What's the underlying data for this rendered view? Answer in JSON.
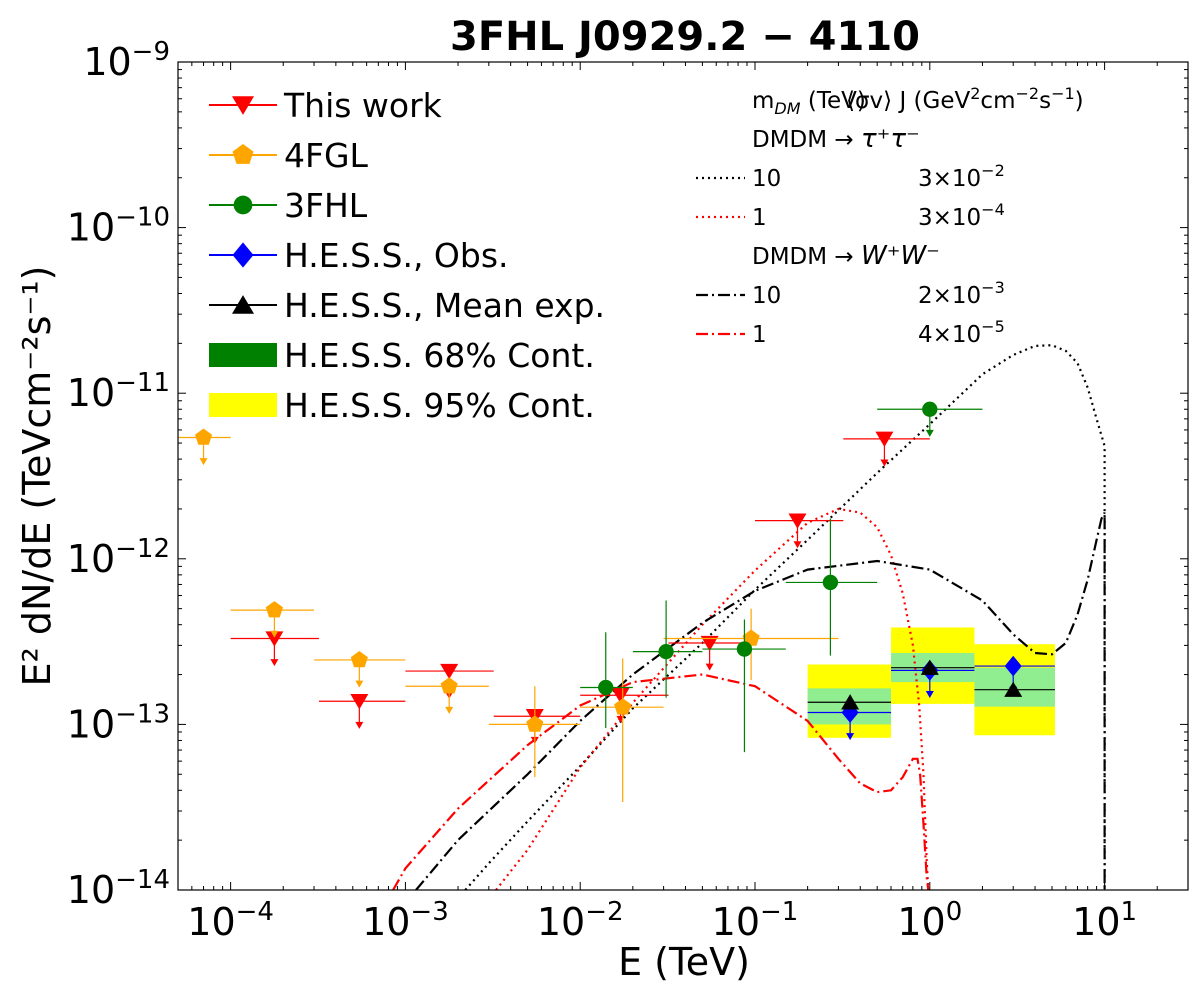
{
  "chart_data": {
    "type": "scatter",
    "title": "3FHL J0929.2 − 4110",
    "xlabel": "E (TeV)",
    "ylabel": "E² dN/dE (TeVcm⁻²s⁻¹)",
    "xscale": "log",
    "yscale": "log",
    "xlim": [
      5e-05,
      30
    ],
    "ylim": [
      1e-14,
      1e-09
    ],
    "x_ticks": [
      {
        "value": 0.0001,
        "base": "10",
        "exp": "−4"
      },
      {
        "value": 0.001,
        "base": "10",
        "exp": "−3"
      },
      {
        "value": 0.01,
        "base": "10",
        "exp": "−2"
      },
      {
        "value": 0.1,
        "base": "10",
        "exp": "−1"
      },
      {
        "value": 1,
        "base": "10",
        "exp": "0"
      },
      {
        "value": 10,
        "base": "10",
        "exp": "1"
      }
    ],
    "y_ticks": [
      {
        "value": 1e-14,
        "base": "10",
        "exp": "−14"
      },
      {
        "value": 1e-13,
        "base": "10",
        "exp": "−13"
      },
      {
        "value": 1e-12,
        "base": "10",
        "exp": "−12"
      },
      {
        "value": 1e-11,
        "base": "10",
        "exp": "−11"
      },
      {
        "value": 1e-10,
        "base": "10",
        "exp": "−10"
      },
      {
        "value": 1e-09,
        "base": "10",
        "exp": "−9"
      }
    ],
    "grid": false,
    "legend_position": "top-left",
    "legend": [
      {
        "label": "This work",
        "color": "#ff0000",
        "marker": "triangle-down"
      },
      {
        "label": "4FGL",
        "color": "#ffa500",
        "marker": "pentagon"
      },
      {
        "label": "3FHL",
        "color": "#008000",
        "marker": "circle"
      },
      {
        "label": "H.E.S.S., Obs.",
        "color": "#0000ff",
        "marker": "diamond"
      },
      {
        "label": "H.E.S.S., Mean exp.",
        "color": "#000000",
        "marker": "triangle-up"
      },
      {
        "label": "H.E.S.S. 68% Cont.",
        "color": "#008000",
        "marker": "patch"
      },
      {
        "label": "H.E.S.S. 95% Cont.",
        "color": "#ffff00",
        "marker": "patch"
      }
    ],
    "dm_legend": {
      "position": "top-right",
      "header_left": "m",
      "header_left_sub": "DM",
      "header_left_unit": " (TeV)",
      "header_right": "⟨σv⟩ J (GeV",
      "header_right_e1": "2",
      "header_right_mid": "cm",
      "header_right_e2": "−2",
      "header_right_mid2": "s",
      "header_right_e3": "−1",
      "header_right_end": ")",
      "groups": [
        {
          "label": "DMDM → ",
          "channel": "τ⁺τ⁻",
          "rows": [
            {
              "mass": "10",
              "coef": "3×10",
              "exp": "−2",
              "color": "#000000",
              "style": "dotted"
            },
            {
              "mass": "1",
              "coef": "3×10",
              "exp": "−4",
              "color": "#ff0000",
              "style": "dotted"
            }
          ]
        },
        {
          "label": "DMDM → ",
          "channel": "W⁺W⁻",
          "rows": [
            {
              "mass": "10",
              "coef": "2×10",
              "exp": "−3",
              "color": "#000000",
              "style": "dashdot"
            },
            {
              "mass": "1",
              "coef": "4×10",
              "exp": "−5",
              "color": "#ff0000",
              "style": "dashdot"
            }
          ]
        }
      ]
    },
    "series": [
      {
        "name": "This work",
        "color": "#ff0000",
        "marker": "triangle-down",
        "upper_limit": true,
        "points": [
          {
            "x": 0.000178,
            "y": 3.3e-13,
            "xerr": [
              0.0001,
              0.00032
            ]
          },
          {
            "x": 0.000545,
            "y": 1.38e-13,
            "xerr": [
              0.00032,
              0.001
            ]
          },
          {
            "x": 0.00178,
            "y": 2.1e-13,
            "xerr": [
              0.001,
              0.0032
            ]
          },
          {
            "x": 0.0055,
            "y": 1.12e-13,
            "xerr": [
              0.0032,
              0.01
            ]
          },
          {
            "x": 0.017,
            "y": 1.5e-13,
            "xerr": [
              0.01,
              0.032
            ]
          },
          {
            "x": 0.055,
            "y": 3.1e-13,
            "xerr": [
              0.032,
              0.1
            ]
          },
          {
            "x": 0.175,
            "y": 1.7e-12,
            "xerr": [
              0.1,
              0.32
            ]
          },
          {
            "x": 0.55,
            "y": 5.3e-12,
            "xerr": [
              0.32,
              1.0
            ]
          }
        ]
      },
      {
        "name": "4FGL",
        "color": "#ffa500",
        "marker": "pentagon",
        "points": [
          {
            "x": 7e-05,
            "y": 5.4e-12,
            "xerr": [
              5e-05,
              0.0001
            ],
            "upper_limit": true
          },
          {
            "x": 0.000178,
            "y": 4.9e-13,
            "xerr": [
              0.0001,
              0.0003
            ],
            "upper_limit": true
          },
          {
            "x": 0.000545,
            "y": 2.45e-13,
            "xerr": [
              0.0003,
              0.001
            ],
            "upper_limit": true
          },
          {
            "x": 0.00178,
            "y": 1.7e-13,
            "xerr": [
              0.001,
              0.003
            ],
            "upper_limit": true
          },
          {
            "x": 0.0055,
            "y": 1e-13,
            "xerr": [
              0.003,
              0.01
            ],
            "yerr": [
              4.8e-14,
              1.7e-13
            ]
          },
          {
            "x": 0.0175,
            "y": 1.27e-13,
            "xerr": [
              0.01,
              0.03
            ],
            "yerr": [
              3.4e-14,
              2.5e-13
            ]
          },
          {
            "x": 0.095,
            "y": 3.3e-13,
            "xerr": [
              0.03,
              0.3
            ],
            "yerr": [
              1.85e-13,
              5e-13
            ]
          }
        ]
      },
      {
        "name": "3FHL",
        "color": "#008000",
        "marker": "circle",
        "points": [
          {
            "x": 0.014,
            "y": 1.67e-13,
            "xerr": [
              0.01,
              0.02
            ],
            "yerr": [
              9.5e-14,
              3.6e-13
            ]
          },
          {
            "x": 0.031,
            "y": 2.75e-13,
            "xerr": [
              0.02,
              0.05
            ],
            "yerr": [
              1.45e-13,
              5.6e-13
            ]
          },
          {
            "x": 0.087,
            "y": 2.85e-13,
            "xerr": [
              0.05,
              0.15
            ],
            "yerr": [
              6.8e-14,
              4.3e-13
            ]
          },
          {
            "x": 0.27,
            "y": 7.2e-13,
            "xerr": [
              0.15,
              0.5
            ],
            "yerr": [
              2.6e-13,
              1.75e-12
            ]
          },
          {
            "x": 1.0,
            "y": 8e-12,
            "xerr": [
              0.5,
              2.0
            ],
            "upper_limit": true
          }
        ]
      },
      {
        "name": "H.E.S.S., Obs.",
        "color": "#0000ff",
        "marker": "diamond",
        "upper_limit": true,
        "points": [
          {
            "x": 0.35,
            "y": 1.18e-13,
            "xerr": [
              0.2,
              0.6
            ]
          },
          {
            "x": 1.0,
            "y": 2.12e-13,
            "xerr": [
              0.6,
              1.8
            ]
          },
          {
            "x": 3.0,
            "y": 2.25e-13,
            "xerr": [
              1.8,
              5.2
            ]
          }
        ]
      },
      {
        "name": "H.E.S.S., Mean exp.",
        "color": "#000000",
        "marker": "triangle-up",
        "points": [
          {
            "x": 0.35,
            "y": 1.36e-13,
            "xerr": [
              0.2,
              0.6
            ]
          },
          {
            "x": 1.0,
            "y": 2.2e-13,
            "xerr": [
              0.6,
              1.8
            ]
          },
          {
            "x": 3.0,
            "y": 1.62e-13,
            "xerr": [
              1.8,
              5.2
            ]
          }
        ]
      }
    ],
    "bands": [
      {
        "x0": 0.2,
        "x1": 0.6,
        "c95": [
          8.3e-14,
          2.3e-13
        ],
        "c68": [
          1e-13,
          1.65e-13
        ]
      },
      {
        "x0": 0.6,
        "x1": 1.8,
        "c95": [
          1.33e-13,
          3.85e-13
        ],
        "c68": [
          1.8e-13,
          2.7e-13
        ]
      },
      {
        "x0": 1.8,
        "x1": 5.2,
        "c95": [
          8.6e-14,
          3.05e-13
        ],
        "c68": [
          1.28e-13,
          2.2e-13
        ]
      }
    ],
    "curves": [
      {
        "name": "10 TeV τ⁺τ⁻",
        "color": "#000000",
        "style": "dotted",
        "points": [
          [
            0.0022,
            1e-14
          ],
          [
            0.003,
            1.45e-14
          ],
          [
            0.005,
            2.6e-14
          ],
          [
            0.01,
            5.6e-14
          ],
          [
            0.02,
            1.25e-13
          ],
          [
            0.05,
            3.1e-13
          ],
          [
            0.1,
            6.5e-13
          ],
          [
            0.2,
            1.3e-12
          ],
          [
            0.5,
            3.3e-12
          ],
          [
            1,
            6.5e-12
          ],
          [
            2,
            1.3e-11
          ],
          [
            3,
            1.7e-11
          ],
          [
            4,
            1.93e-11
          ],
          [
            5,
            1.95e-11
          ],
          [
            6,
            1.8e-11
          ],
          [
            7,
            1.52e-11
          ],
          [
            8,
            1.08e-11
          ],
          [
            9,
            7e-12
          ],
          [
            10,
            4.8e-12
          ],
          [
            10,
            1e-14
          ]
        ]
      },
      {
        "name": "1 TeV τ⁺τ⁻",
        "color": "#ff0000",
        "style": "dotted",
        "points": [
          [
            0.0033,
            1e-14
          ],
          [
            0.005,
            1.75e-14
          ],
          [
            0.01,
            5.5e-14
          ],
          [
            0.02,
            1.35e-13
          ],
          [
            0.05,
            4e-13
          ],
          [
            0.1,
            8.5e-13
          ],
          [
            0.2,
            1.65e-12
          ],
          [
            0.3,
            2e-12
          ],
          [
            0.4,
            1.9e-12
          ],
          [
            0.5,
            1.55e-12
          ],
          [
            0.6,
            1.05e-12
          ],
          [
            0.7,
            6.2e-13
          ],
          [
            0.8,
            3e-13
          ],
          [
            0.87,
            1.3e-13
          ],
          [
            0.92,
            5e-14
          ],
          [
            0.96,
            1.5e-14
          ],
          [
            0.98,
            1e-14
          ]
        ]
      },
      {
        "name": "10 TeV W⁺W⁻",
        "color": "#000000",
        "style": "dashdot",
        "points": [
          [
            0.00115,
            1e-14
          ],
          [
            0.002,
            2e-14
          ],
          [
            0.005,
            5e-14
          ],
          [
            0.01,
            1.05e-13
          ],
          [
            0.02,
            2e-13
          ],
          [
            0.05,
            4.1e-13
          ],
          [
            0.1,
            6.4e-13
          ],
          [
            0.2,
            8.6e-13
          ],
          [
            0.5,
            9.7e-13
          ],
          [
            1,
            8.6e-13
          ],
          [
            2,
            5.6e-13
          ],
          [
            3,
            3.5e-13
          ],
          [
            4,
            2.7e-13
          ],
          [
            5,
            2.65e-13
          ],
          [
            6,
            3.1e-13
          ],
          [
            7,
            4.6e-13
          ],
          [
            8,
            7.5e-13
          ],
          [
            9,
            1.3e-12
          ],
          [
            9.6,
            1.75e-12
          ],
          [
            10,
            1.9e-12
          ],
          [
            10,
            1e-14
          ]
        ]
      },
      {
        "name": "1 TeV W⁺W⁻",
        "color": "#ff0000",
        "style": "dashdot",
        "points": [
          [
            0.00085,
            1e-14
          ],
          [
            0.001,
            1.35e-14
          ],
          [
            0.002,
            3.1e-14
          ],
          [
            0.005,
            7.5e-14
          ],
          [
            0.01,
            1.3e-13
          ],
          [
            0.02,
            1.8e-13
          ],
          [
            0.05,
            2e-13
          ],
          [
            0.1,
            1.7e-13
          ],
          [
            0.2,
            1.05e-13
          ],
          [
            0.3,
            6.2e-14
          ],
          [
            0.4,
            4.4e-14
          ],
          [
            0.5,
            3.9e-14
          ],
          [
            0.6,
            4e-14
          ],
          [
            0.7,
            4.8e-14
          ],
          [
            0.8,
            6.2e-14
          ],
          [
            0.85,
            6.2e-14
          ],
          [
            0.88,
            5e-14
          ],
          [
            0.92,
            2.5e-14
          ],
          [
            0.96,
            1.2e-14
          ],
          [
            0.98,
            1e-14
          ]
        ]
      }
    ]
  }
}
